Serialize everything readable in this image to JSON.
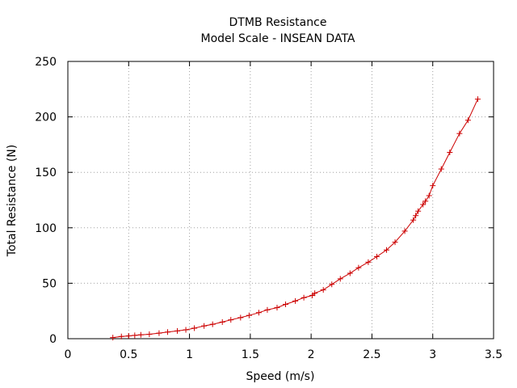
{
  "chart_data": {
    "type": "line",
    "title": "DTMB Resistance",
    "subtitle": "Model Scale - INSEAN DATA",
    "xlabel": "Speed (m/s)",
    "ylabel": "Total Resistance (N)",
    "xlim": [
      0,
      3.5
    ],
    "ylim": [
      0,
      250
    ],
    "xticks": [
      "0",
      "0.5",
      "1",
      "1.5",
      "2",
      "2.5",
      "3",
      "3.5"
    ],
    "yticks": [
      "0",
      "50",
      "100",
      "150",
      "200",
      "250"
    ],
    "grid": true,
    "legend": "none",
    "series": [
      {
        "color": "#cc0000",
        "marker": "plus",
        "x": [
          0.37,
          0.44,
          0.5,
          0.55,
          0.6,
          0.67,
          0.75,
          0.82,
          0.9,
          0.97,
          1.04,
          1.12,
          1.19,
          1.27,
          1.34,
          1.42,
          1.49,
          1.57,
          1.64,
          1.72,
          1.79,
          1.87,
          1.94,
          2.01,
          2.03,
          2.1,
          2.17,
          2.24,
          2.32,
          2.39,
          2.47,
          2.54,
          2.62,
          2.69,
          2.77,
          2.84,
          2.86,
          2.88,
          2.92,
          2.94,
          2.97,
          3.0,
          3.07,
          3.14,
          3.22,
          3.29,
          3.37
        ],
        "y": [
          1,
          2,
          2.5,
          3,
          3.5,
          4,
          5,
          6,
          7,
          8,
          9.5,
          11.5,
          13,
          15,
          17,
          19,
          21,
          23.5,
          26,
          28,
          31,
          34,
          37,
          39,
          41,
          44,
          49,
          54,
          59,
          64,
          69,
          74,
          80,
          87,
          97,
          107,
          111,
          115,
          121,
          124,
          129,
          138,
          153,
          168,
          185,
          197,
          216
        ]
      }
    ]
  }
}
